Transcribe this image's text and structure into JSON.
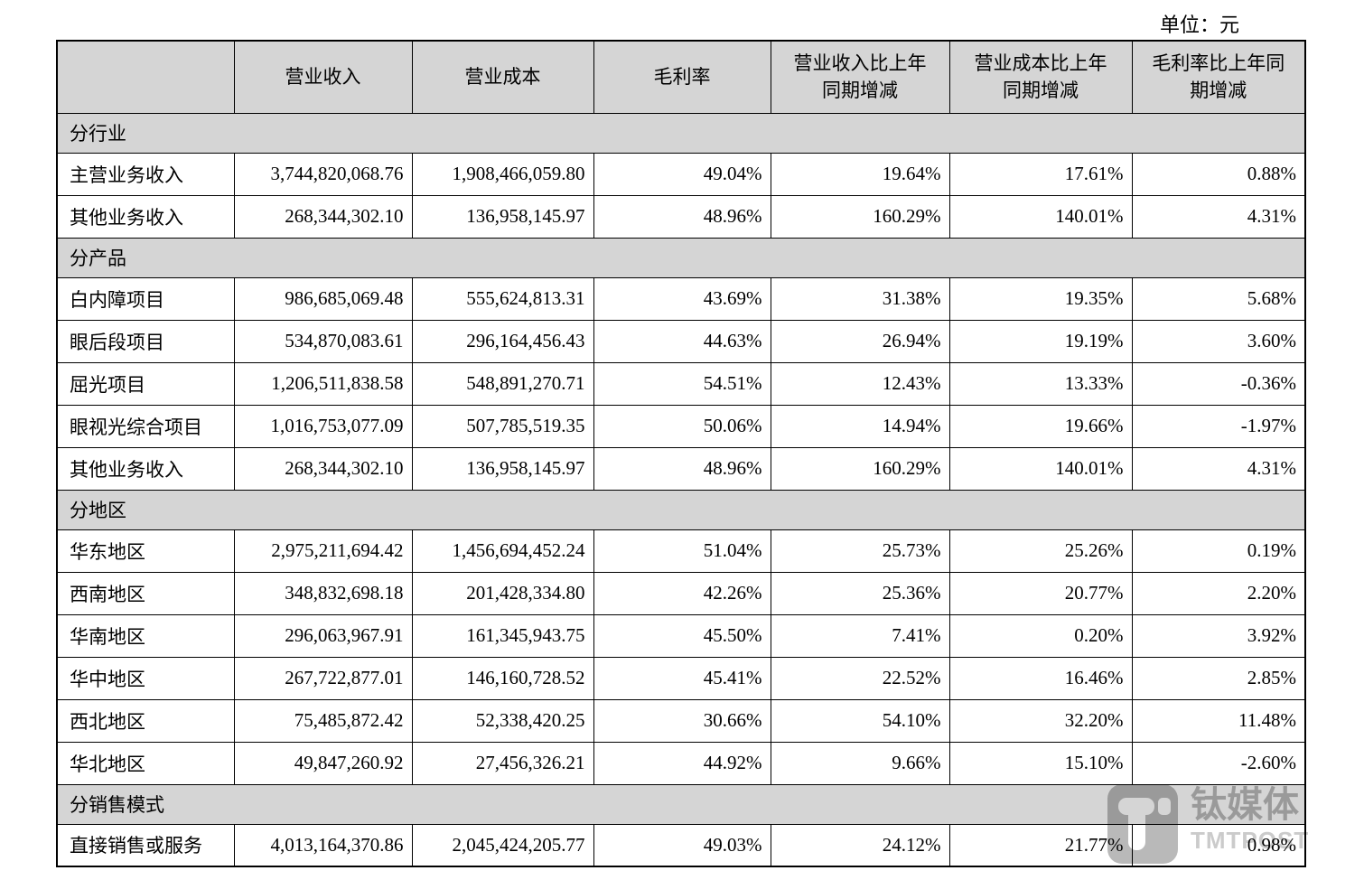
{
  "page": {
    "unit_label": "单位：元"
  },
  "table": {
    "columns": [
      "",
      "营业收入",
      "营业成本",
      "毛利率",
      "营业收入比上年\n同期增减",
      "营业成本比上年\n同期增减",
      "毛利率比上年同\n期增减"
    ],
    "sections": [
      {
        "title": "分行业",
        "rows": [
          [
            "主营业务收入",
            "3,744,820,068.76",
            "1,908,466,059.80",
            "49.04%",
            "19.64%",
            "17.61%",
            "0.88%"
          ],
          [
            "其他业务收入",
            "268,344,302.10",
            "136,958,145.97",
            "48.96%",
            "160.29%",
            "140.01%",
            "4.31%"
          ]
        ]
      },
      {
        "title": "分产品",
        "rows": [
          [
            "白内障项目",
            "986,685,069.48",
            "555,624,813.31",
            "43.69%",
            "31.38%",
            "19.35%",
            "5.68%"
          ],
          [
            "眼后段项目",
            "534,870,083.61",
            "296,164,456.43",
            "44.63%",
            "26.94%",
            "19.19%",
            "3.60%"
          ],
          [
            "屈光项目",
            "1,206,511,838.58",
            "548,891,270.71",
            "54.51%",
            "12.43%",
            "13.33%",
            "-0.36%"
          ],
          [
            "眼视光综合项目",
            "1,016,753,077.09",
            "507,785,519.35",
            "50.06%",
            "14.94%",
            "19.66%",
            "-1.97%"
          ],
          [
            "其他业务收入",
            "268,344,302.10",
            "136,958,145.97",
            "48.96%",
            "160.29%",
            "140.01%",
            "4.31%"
          ]
        ]
      },
      {
        "title": "分地区",
        "rows": [
          [
            "华东地区",
            "2,975,211,694.42",
            "1,456,694,452.24",
            "51.04%",
            "25.73%",
            "25.26%",
            "0.19%"
          ],
          [
            "西南地区",
            "348,832,698.18",
            "201,428,334.80",
            "42.26%",
            "25.36%",
            "20.77%",
            "2.20%"
          ],
          [
            "华南地区",
            "296,063,967.91",
            "161,345,943.75",
            "45.50%",
            "7.41%",
            "0.20%",
            "3.92%"
          ],
          [
            "华中地区",
            "267,722,877.01",
            "146,160,728.52",
            "45.41%",
            "22.52%",
            "16.46%",
            "2.85%"
          ],
          [
            "西北地区",
            "75,485,872.42",
            "52,338,420.25",
            "30.66%",
            "54.10%",
            "32.20%",
            "11.48%"
          ],
          [
            "华北地区",
            "49,847,260.92",
            "27,456,326.21",
            "44.92%",
            "9.66%",
            "15.10%",
            "-2.60%"
          ]
        ]
      },
      {
        "title": "分销售模式",
        "rows": [
          [
            "直接销售或服务",
            "4,013,164,370.86",
            "2,045,424,205.77",
            "49.03%",
            "24.12%",
            "21.77%",
            "0.98%"
          ]
        ]
      }
    ]
  },
  "watermark": {
    "brand": "钛媒体",
    "subtitle": "TMTPOST"
  },
  "colors": {
    "band_gray": "#d4d4d4",
    "border": "#000000",
    "watermark_gray": "#b9b9b9",
    "watermark_light": "#cbcbcb"
  }
}
